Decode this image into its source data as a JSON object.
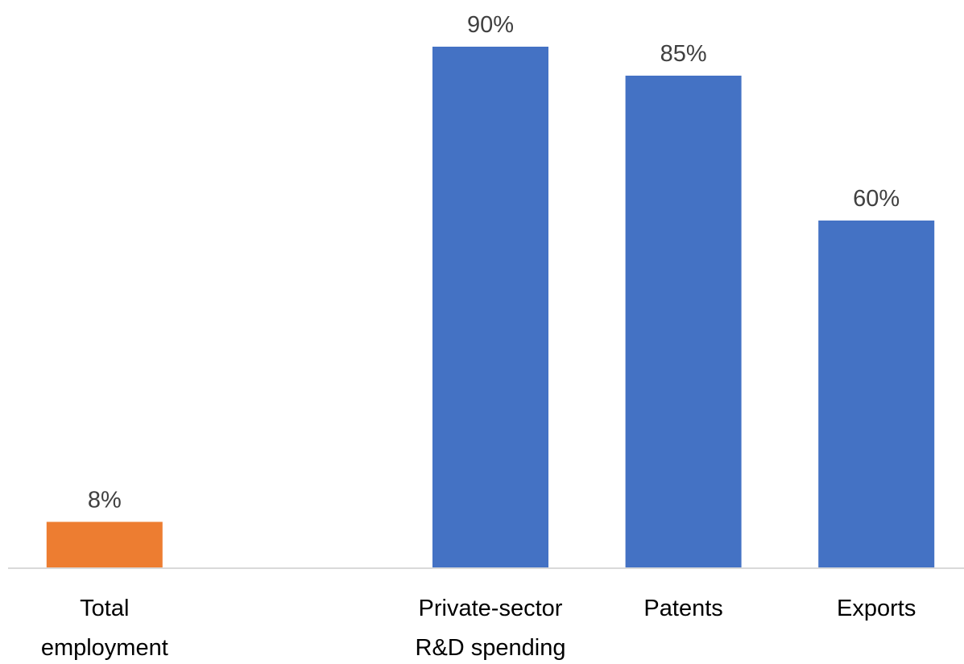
{
  "chart_data": {
    "type": "bar",
    "categories": [
      [
        "Total",
        "employment"
      ],
      [],
      [
        "Private-sector",
        "R&D spending"
      ],
      [
        "Patents"
      ],
      [
        "Exports"
      ]
    ],
    "values": [
      8,
      null,
      90,
      85,
      60
    ],
    "value_labels": [
      "8%",
      "",
      "90%",
      "85%",
      "60%"
    ],
    "unit": "%",
    "colors": [
      "#ED7D31",
      null,
      "#4472C4",
      "#4472C4",
      "#4472C4"
    ],
    "ylim": [
      0,
      90
    ],
    "grid": false,
    "legend": "none",
    "axis_color": "#D9D9D9"
  }
}
